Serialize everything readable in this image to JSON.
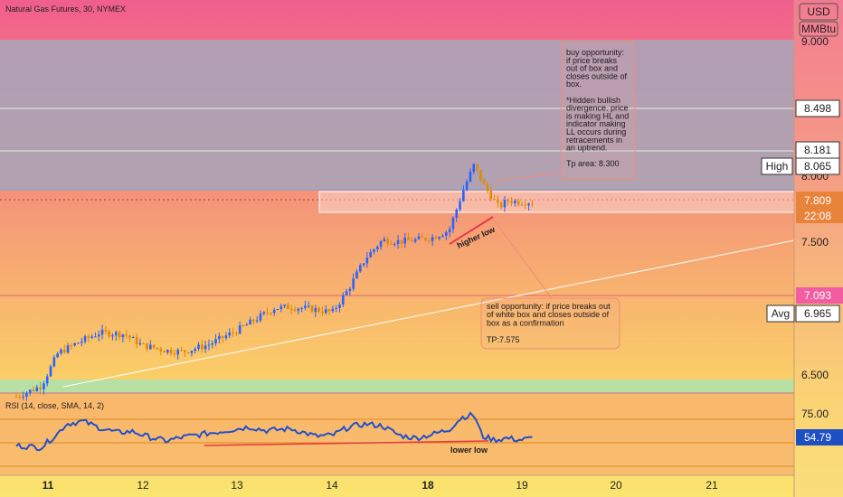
{
  "title": "Natural Gas Futures, 30, NYMEX",
  "currency": "USD",
  "unit": "MMBtu",
  "rsi_title": "RSI (14, close, SMA, 14, 2)",
  "chart_data": {
    "type": "candlestick",
    "x_ticks": [
      "11",
      "12",
      "13",
      "14",
      "18",
      "19",
      "20",
      "21"
    ],
    "y_ticks": [
      "9.000",
      "8.000",
      "7.500",
      "6.500"
    ],
    "ylim": [
      6.35,
      9.05
    ],
    "series": [
      {
        "kind": "price",
        "points": [
          [
            0.0,
            6.38
          ],
          [
            0.3,
            6.46
          ],
          [
            0.5,
            6.7
          ],
          [
            0.75,
            6.78
          ],
          [
            1.0,
            6.85
          ],
          [
            1.3,
            6.84
          ],
          [
            1.5,
            6.76
          ],
          [
            1.8,
            6.72
          ],
          [
            2.0,
            6.71
          ],
          [
            2.3,
            6.76
          ],
          [
            2.6,
            6.85
          ],
          [
            2.8,
            6.92
          ],
          [
            3.1,
            7.03
          ],
          [
            3.3,
            7.04
          ],
          [
            3.6,
            7.02
          ],
          [
            3.8,
            7.0
          ],
          [
            4.0,
            7.18
          ],
          [
            4.2,
            7.4
          ],
          [
            4.4,
            7.53
          ],
          [
            4.6,
            7.52
          ],
          [
            4.8,
            7.53
          ],
          [
            5.0,
            7.55
          ],
          [
            5.2,
            7.6
          ],
          [
            5.38,
            7.91
          ],
          [
            5.5,
            8.08
          ],
          [
            5.62,
            7.93
          ],
          [
            5.8,
            7.77
          ],
          [
            5.9,
            7.82
          ],
          [
            6.05,
            7.81
          ],
          [
            6.2,
            7.809
          ]
        ]
      },
      {
        "kind": "rsi",
        "points": [
          [
            0.0,
            47
          ],
          [
            0.3,
            45
          ],
          [
            0.5,
            60
          ],
          [
            0.6,
            70
          ],
          [
            0.8,
            73
          ],
          [
            1.0,
            66
          ],
          [
            1.2,
            61
          ],
          [
            1.4,
            62
          ],
          [
            1.6,
            56
          ],
          [
            1.8,
            52
          ],
          [
            2.0,
            56
          ],
          [
            2.3,
            60
          ],
          [
            2.6,
            64
          ],
          [
            2.8,
            67
          ],
          [
            3.0,
            63
          ],
          [
            3.3,
            65
          ],
          [
            3.6,
            57
          ],
          [
            3.8,
            58
          ],
          [
            4.0,
            67
          ],
          [
            4.2,
            70
          ],
          [
            4.4,
            68
          ],
          [
            4.6,
            58
          ],
          [
            4.8,
            55
          ],
          [
            5.0,
            59
          ],
          [
            5.2,
            64
          ],
          [
            5.35,
            77
          ],
          [
            5.5,
            80
          ],
          [
            5.6,
            57
          ],
          [
            5.75,
            53
          ],
          [
            5.9,
            55
          ],
          [
            6.05,
            53
          ],
          [
            6.2,
            54.79
          ]
        ]
      }
    ],
    "rsi_ticks": [
      "75.00"
    ],
    "rsi_ylim": [
      25,
      95
    ]
  },
  "price_labels": [
    {
      "value": "8.498",
      "style": "boxed"
    },
    {
      "value": "8.181",
      "style": "boxed"
    },
    {
      "value": "8.065",
      "style": "boxed"
    },
    {
      "value": "7.809",
      "style": "orange"
    },
    {
      "value": "22:08",
      "style": "orange"
    },
    {
      "value": "7.093",
      "style": "pink"
    },
    {
      "value": "6.965",
      "style": "boxed"
    }
  ],
  "high_label": "High",
  "avg_label": "Avg",
  "rsi_value": "54.79",
  "annotations": {
    "buy": {
      "lines": [
        "buy opportunity:",
        "if price breaks",
        "out of box and",
        "closes outside of",
        "box.",
        "",
        "*Hidden bullish",
        "divergence. price",
        "is making HL and",
        "indicator making",
        "LL occurs during",
        "retracements in",
        "an uptrend.",
        "",
        "Tp area: 8.300"
      ]
    },
    "sell": {
      "lines": [
        "sell opportunity: if price breaks out",
        "of white box and closes outside of",
        "box as a confirmation",
        "",
        "TP:7.575"
      ]
    },
    "higher_low": "higher low",
    "lower_low": "lower low"
  },
  "colors": {
    "candle_up": "#2962ff",
    "candle_down": "#e08a00",
    "trendline": "#ffffff",
    "annotation_border": "#f08c7a"
  }
}
